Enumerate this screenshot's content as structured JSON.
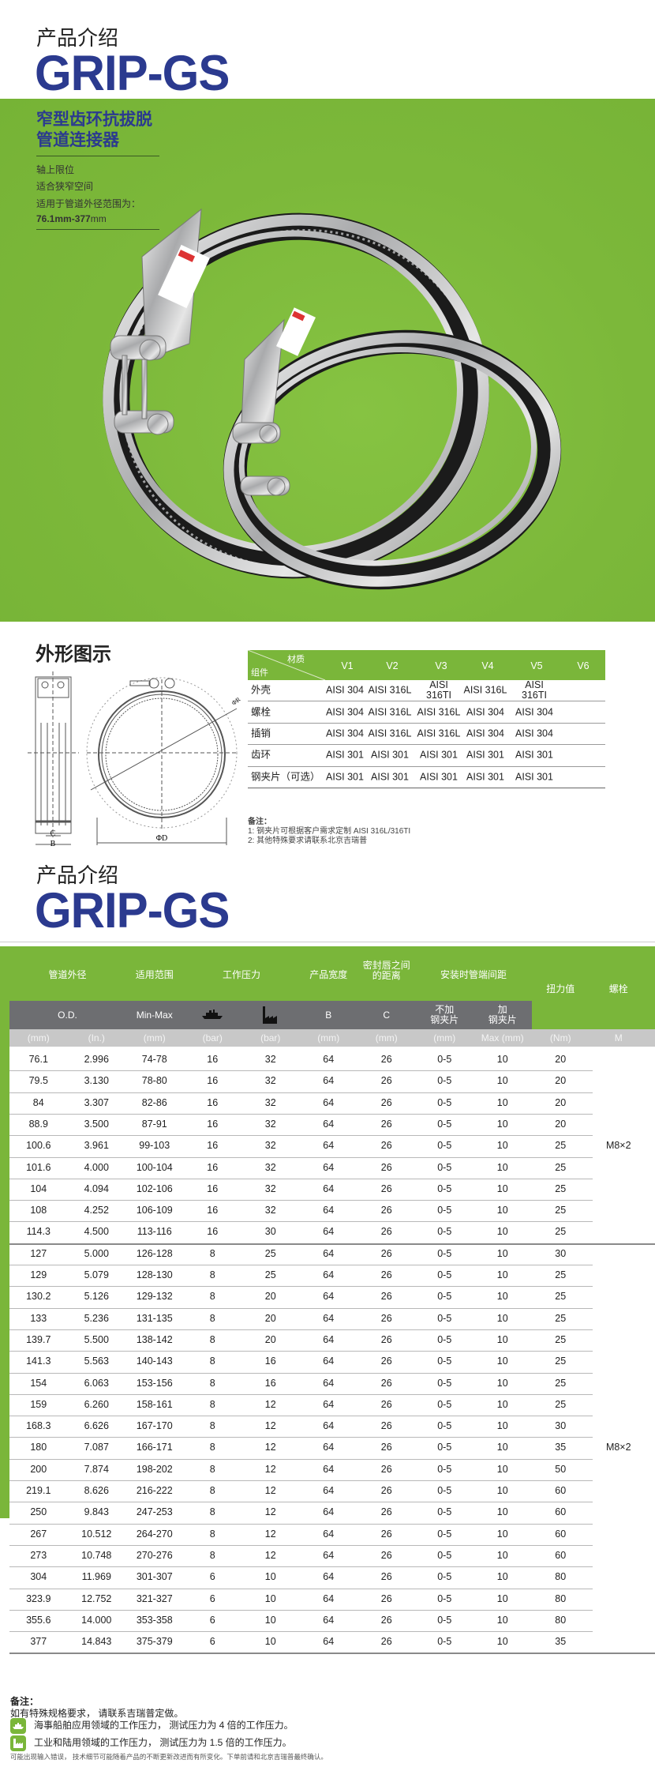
{
  "header": {
    "kicker": "产品介绍",
    "brand": "GRIP-GS"
  },
  "banner": {
    "subtitle_line1": "窄型齿环抗拔脱",
    "subtitle_line2": "管道连接器",
    "features": [
      "轴上限位",
      "适合狭窄空间",
      "适用于管道外径范围为："
    ],
    "range_bold": "76.1mm-377",
    "range_unit": "mm",
    "background_color": "#7cb83a"
  },
  "diagram": {
    "title": "外形图示",
    "labels": {
      "c": "C",
      "b": "B",
      "d": "ΦD",
      "r": "ΦR"
    }
  },
  "materials": {
    "corner_top": "材质",
    "corner_bottom": "组件",
    "columns": [
      "V1",
      "V2",
      "V3",
      "V4",
      "V5",
      "V6"
    ],
    "rows": [
      {
        "label": "外壳",
        "values": [
          "AISI 304",
          "AISI 316L",
          "AISI\n316TI",
          "AISI 316L",
          "AISI\n316TI",
          ""
        ]
      },
      {
        "label": "螺栓",
        "values": [
          "AISI 304",
          "AISI 316L",
          "AISI 316L",
          "AISI 304",
          "AISI 304",
          ""
        ]
      },
      {
        "label": "插销",
        "values": [
          "AISI 304",
          "AISI 316L",
          "AISI 316L",
          "AISI 304",
          "AISI 304",
          ""
        ]
      },
      {
        "label": "齿环",
        "values": [
          "AISI 301",
          "AISI 301",
          "AISI 301",
          "AISI 301",
          "AISI 301",
          ""
        ]
      },
      {
        "label": "钢夹片（可选）",
        "values": [
          "AISI 301",
          "AISI 301",
          "AISI 301",
          "AISI 301",
          "AISI 301",
          ""
        ]
      }
    ],
    "notes_title": "备注：",
    "notes": [
      "1:  钢夹片可根据客户需求定制 AISI  316L/316TI",
      "2:  其他特殊要求请联系北京吉瑞普"
    ]
  },
  "second_header": {
    "kicker": "产品介绍",
    "brand": "GRIP-GS"
  },
  "spec_table": {
    "group_headers": [
      "管道外径",
      "适用范围",
      "工作压力",
      "产品宽度",
      "密封唇之间\n的距离",
      "安装时管端间距",
      "扭力值",
      "螺栓"
    ],
    "sub_headers": [
      "O.D.",
      "Min-Max",
      "ship-icon",
      "factory-icon",
      "B",
      "C",
      "不加\n钢夹片",
      "加\n钢夹片"
    ],
    "units": [
      "(mm)",
      "(In.)",
      "(mm)",
      "(bar)",
      "(bar)",
      "(mm)",
      "(mm)",
      "(mm)",
      "Max (mm)",
      "(Nm)",
      "M"
    ],
    "rows": [
      [
        "76.1",
        "2.996",
        "74-78",
        "16",
        "32",
        "64",
        "26",
        "0-5",
        "10",
        "20",
        ""
      ],
      [
        "79.5",
        "3.130",
        "78-80",
        "16",
        "32",
        "64",
        "26",
        "0-5",
        "10",
        "20",
        ""
      ],
      [
        "84",
        "3.307",
        "82-86",
        "16",
        "32",
        "64",
        "26",
        "0-5",
        "10",
        "20",
        ""
      ],
      [
        "88.9",
        "3.500",
        "87-91",
        "16",
        "32",
        "64",
        "26",
        "0-5",
        "10",
        "20",
        ""
      ],
      [
        "100.6",
        "3.961",
        "99-103",
        "16",
        "32",
        "64",
        "26",
        "0-5",
        "10",
        "25",
        "M8×2"
      ],
      [
        "101.6",
        "4.000",
        "100-104",
        "16",
        "32",
        "64",
        "26",
        "0-5",
        "10",
        "25",
        ""
      ],
      [
        "104",
        "4.094",
        "102-106",
        "16",
        "32",
        "64",
        "26",
        "0-5",
        "10",
        "25",
        ""
      ],
      [
        "108",
        "4.252",
        "106-109",
        "16",
        "32",
        "64",
        "26",
        "0-5",
        "10",
        "25",
        ""
      ],
      [
        "114.3",
        "4.500",
        "113-116",
        "16",
        "30",
        "64",
        "26",
        "0-5",
        "10",
        "25",
        ""
      ],
      [
        "127",
        "5.000",
        "126-128",
        "8",
        "25",
        "64",
        "26",
        "0-5",
        "10",
        "30",
        ""
      ],
      [
        "129",
        "5.079",
        "128-130",
        "8",
        "25",
        "64",
        "26",
        "0-5",
        "10",
        "25",
        ""
      ],
      [
        "130.2",
        "5.126",
        "129-132",
        "8",
        "20",
        "64",
        "26",
        "0-5",
        "10",
        "25",
        ""
      ],
      [
        "133",
        "5.236",
        "131-135",
        "8",
        "20",
        "64",
        "26",
        "0-5",
        "10",
        "25",
        ""
      ],
      [
        "139.7",
        "5.500",
        "138-142",
        "8",
        "20",
        "64",
        "26",
        "0-5",
        "10",
        "25",
        ""
      ],
      [
        "141.3",
        "5.563",
        "140-143",
        "8",
        "16",
        "64",
        "26",
        "0-5",
        "10",
        "25",
        ""
      ],
      [
        "154",
        "6.063",
        "153-156",
        "8",
        "16",
        "64",
        "26",
        "0-5",
        "10",
        "25",
        ""
      ],
      [
        "159",
        "6.260",
        "158-161",
        "8",
        "12",
        "64",
        "26",
        "0-5",
        "10",
        "25",
        ""
      ],
      [
        "168.3",
        "6.626",
        "167-170",
        "8",
        "12",
        "64",
        "26",
        "0-5",
        "10",
        "30",
        ""
      ],
      [
        "180",
        "7.087",
        "166-171",
        "8",
        "12",
        "64",
        "26",
        "0-5",
        "10",
        "35",
        "M8×2"
      ],
      [
        "200",
        "7.874",
        "198-202",
        "8",
        "12",
        "64",
        "26",
        "0-5",
        "10",
        "50",
        ""
      ],
      [
        "219.1",
        "8.626",
        "216-222",
        "8",
        "12",
        "64",
        "26",
        "0-5",
        "10",
        "60",
        ""
      ],
      [
        "250",
        "9.843",
        "247-253",
        "8",
        "12",
        "64",
        "26",
        "0-5",
        "10",
        "60",
        ""
      ],
      [
        "267",
        "10.512",
        "264-270",
        "8",
        "12",
        "64",
        "26",
        "0-5",
        "10",
        "60",
        ""
      ],
      [
        "273",
        "10.748",
        "270-276",
        "8",
        "12",
        "64",
        "26",
        "0-5",
        "10",
        "60",
        ""
      ],
      [
        "304",
        "11.969",
        "301-307",
        "6",
        "10",
        "64",
        "26",
        "0-5",
        "10",
        "80",
        ""
      ],
      [
        "323.9",
        "12.752",
        "321-327",
        "6",
        "10",
        "64",
        "26",
        "0-5",
        "10",
        "80",
        ""
      ],
      [
        "355.6",
        "14.000",
        "353-358",
        "6",
        "10",
        "64",
        "26",
        "0-5",
        "10",
        "80",
        ""
      ],
      [
        "377",
        "14.843",
        "375-379",
        "6",
        "10",
        "64",
        "26",
        "0-5",
        "10",
        "35",
        ""
      ]
    ],
    "header_green": "#7ab63a",
    "header_gray": "#6d6e71"
  },
  "footnotes": {
    "title": "备注：",
    "line1": "如有特殊规格要求，  请联系吉瑞普定做。",
    "marine": "海事船舶应用领域的工作压力，  测试压力为 4 倍的工作压力。",
    "industrial": "工业和陆用领域的工作压力，  测试压力为 1.5 倍的工作压力。",
    "disclaimer": "可能出现输入错误，  技术细节可能随着产品的不断更新改进而有所变化。下单前请和北京吉瑞普最终确认。"
  }
}
